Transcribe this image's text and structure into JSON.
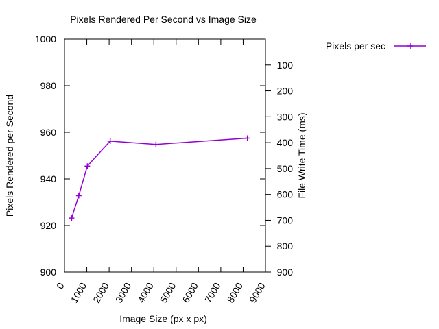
{
  "chart_data": {
    "type": "line",
    "title": "Pixels Rendered Per Second vs Image Size",
    "xlabel": "Image Size (px x px)",
    "ylabel": "Pixels Rendered per Second",
    "y2label": "File Write Time (ms)",
    "xlim": [
      0,
      9000
    ],
    "ylim": [
      900,
      1000
    ],
    "y2lim": [
      0,
      900
    ],
    "y2_reversed": true,
    "x_ticks": [
      "0",
      "1000",
      "2000",
      "3000",
      "4000",
      "5000",
      "6000",
      "7000",
      "8000",
      "9000"
    ],
    "y_ticks": [
      "900",
      "920",
      "940",
      "960",
      "980",
      "1000"
    ],
    "y2_ticks": [
      "100",
      "200",
      "300",
      "400",
      "500",
      "600",
      "700",
      "800",
      "900"
    ],
    "grid": false,
    "legend_position": "top-right outside",
    "series": [
      {
        "name": "Pixels per sec",
        "color": "#9400d3",
        "marker": "plus",
        "x": [
          320,
          640,
          1024,
          2048,
          4096,
          8192
        ],
        "y": [
          923.2,
          932.8,
          945.5,
          956.2,
          954.8,
          957.5
        ]
      }
    ]
  }
}
